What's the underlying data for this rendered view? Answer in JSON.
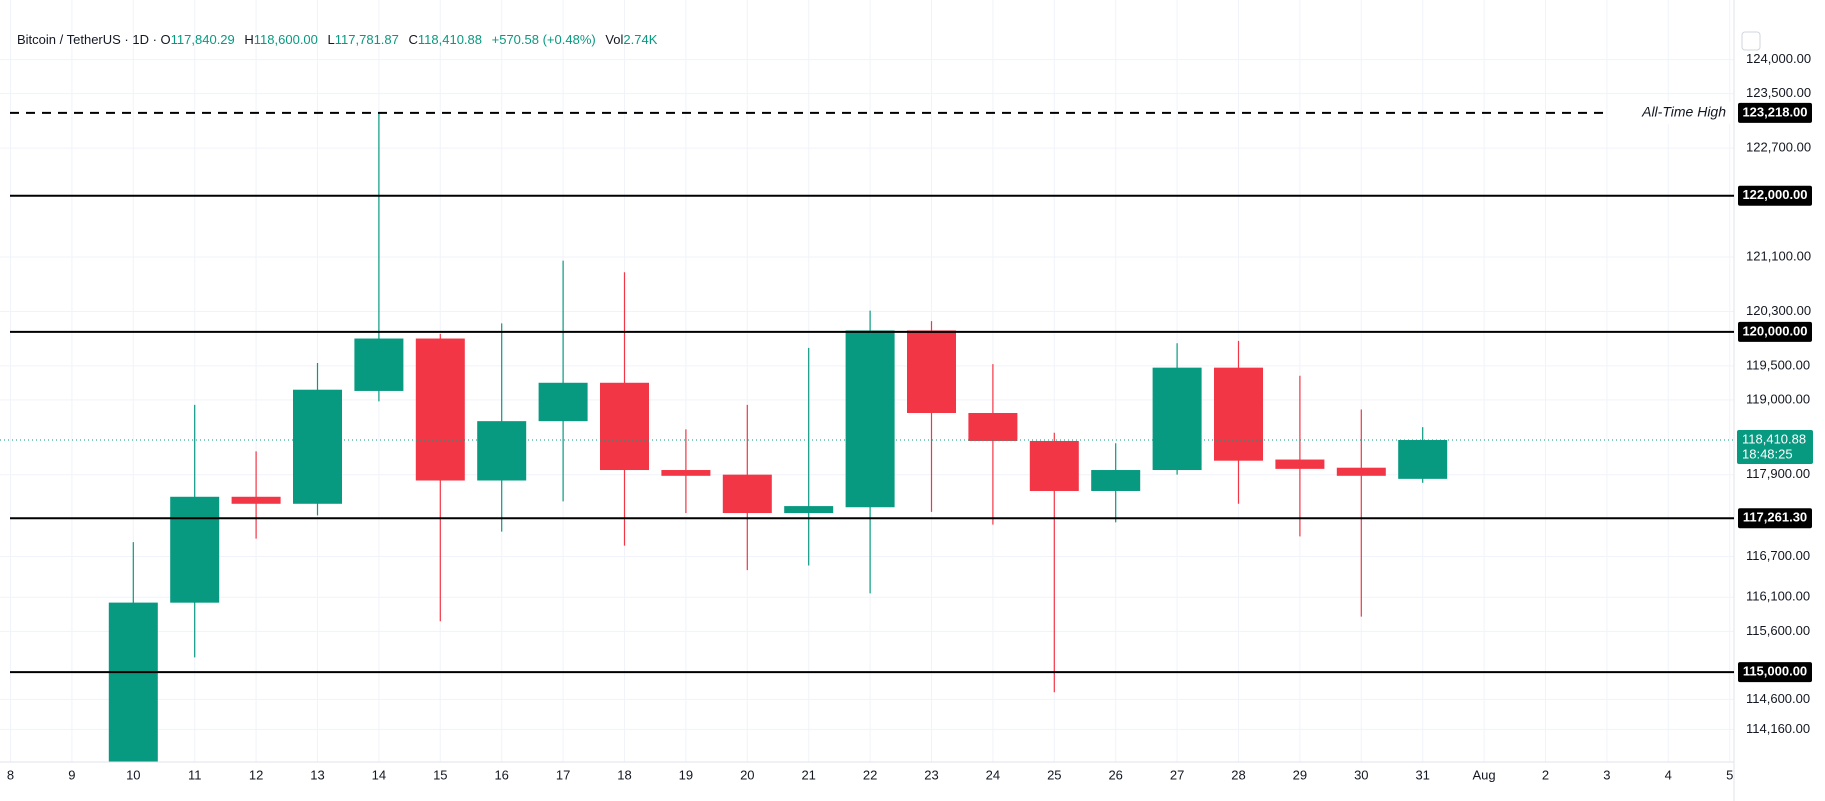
{
  "chart_data": {
    "type": "candlestick",
    "title": "Bitcoin / TetherUS · 1D ·",
    "ohlc_header": [
      {
        "label": "O",
        "value": "117,840.29"
      },
      {
        "label": "H",
        "value": "118,600.00"
      },
      {
        "label": "L",
        "value": "117,781.87"
      },
      {
        "label": "C",
        "value": "118,410.88"
      }
    ],
    "change": "+570.58 (+0.48%)",
    "volume_label": "Vol",
    "volume": "2.74K",
    "categories": [
      "8",
      "9",
      "10",
      "11",
      "12",
      "13",
      "14",
      "15",
      "16",
      "17",
      "18",
      "19",
      "20",
      "21",
      "22",
      "23",
      "24",
      "25",
      "26",
      "27",
      "28",
      "29",
      "30",
      "31",
      "Aug",
      "2",
      "3",
      "4",
      "5"
    ],
    "open": [
      null,
      null,
      113680,
      116021,
      117577,
      117474,
      119132,
      119902,
      117816,
      118688,
      119252,
      117970,
      117902,
      117338,
      117423,
      120021,
      118808,
      118397,
      117662,
      117970,
      119474,
      118124,
      118004,
      117840.29,
      null,
      null,
      null,
      null,
      null
    ],
    "high": [
      null,
      null,
      116910,
      118927,
      118244,
      119543,
      123218,
      119970,
      120124,
      121047,
      120876,
      118568,
      118927,
      119765,
      120312,
      120158,
      119526,
      118517,
      118363,
      119833,
      119868,
      119355,
      118859,
      118600,
      null,
      null,
      null,
      null,
      null
    ],
    "low": [
      null,
      null,
      113600,
      115218,
      116962,
      117303,
      118979,
      115748,
      117064,
      117509,
      116859,
      117338,
      116500,
      116568,
      116158,
      117355,
      117167,
      114705,
      117201,
      117902,
      117474,
      116996,
      115816,
      117781.87,
      null,
      null,
      null,
      null,
      null
    ],
    "close": [
      null,
      null,
      116022,
      117577,
      117474,
      119150,
      119902,
      117816,
      118688,
      119252,
      117970,
      117885,
      117338,
      117440,
      120021,
      118808,
      118397,
      117662,
      117970,
      119474,
      118107,
      117987,
      117885,
      118410.88,
      null,
      null,
      null,
      null,
      null
    ],
    "up_color": "#089981",
    "down_color": "#f23645",
    "ylim": [
      113680,
      124876
    ],
    "yticks": [
      {
        "value": 124000,
        "label": "124,000.00"
      },
      {
        "value": 123500,
        "label": "123,500.00"
      },
      {
        "value": 122700,
        "label": "122,700.00"
      },
      {
        "value": 121100,
        "label": "121,100.00"
      },
      {
        "value": 120300,
        "label": "120,300.00"
      },
      {
        "value": 119500,
        "label": "119,500.00"
      },
      {
        "value": 119000,
        "label": "119,000.00"
      },
      {
        "value": 117900,
        "label": "117,900.00"
      },
      {
        "value": 116700,
        "label": "116,700.00"
      },
      {
        "value": 116100,
        "label": "116,100.00"
      },
      {
        "value": 115600,
        "label": "115,600.00"
      },
      {
        "value": 114600,
        "label": "114,600.00"
      },
      {
        "value": 114160,
        "label": "114,160.00"
      }
    ],
    "grid": true,
    "levels": [
      {
        "value": 123218,
        "label": "123,218.00",
        "style": "dashed",
        "note": "All-Time High"
      },
      {
        "value": 122000,
        "label": "122,000.00",
        "style": "solid"
      },
      {
        "value": 120000,
        "label": "120,000.00",
        "style": "solid"
      },
      {
        "value": 117261.3,
        "label": "117,261.30",
        "style": "solid"
      },
      {
        "value": 115000,
        "label": "115,000.00",
        "style": "solid"
      }
    ],
    "last_price": {
      "value": 118410.88,
      "label": "118,410.88",
      "countdown": "18:48:25"
    }
  }
}
